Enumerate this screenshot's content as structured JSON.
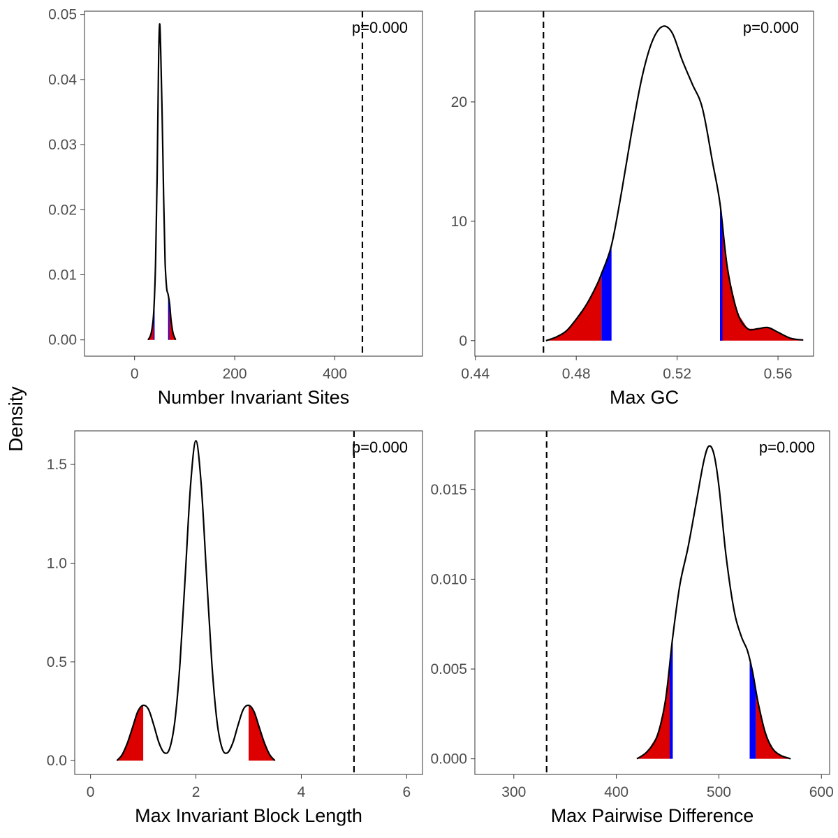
{
  "shared_ylabel": "Density",
  "chart_data": [
    {
      "type": "area",
      "xlabel": "Number Invariant Sites",
      "ylabel": "Density",
      "annotation": "p=0.000",
      "xlim": [
        -100,
        575
      ],
      "ylim": [
        -0.0025,
        0.0505
      ],
      "xticks": [
        0,
        200,
        400
      ],
      "xtick_labels": [
        "0",
        "200",
        "400"
      ],
      "yticks": [
        0,
        0.01,
        0.02,
        0.03,
        0.04,
        0.05
      ],
      "ytick_labels": [
        "0.00",
        "0.01",
        "0.02",
        "0.03",
        "0.04",
        "0.05"
      ],
      "observed_value": 455,
      "curve": [
        [
          27,
          0
        ],
        [
          33,
          0.001
        ],
        [
          38,
          0.004
        ],
        [
          42,
          0.012
        ],
        [
          45,
          0.025
        ],
        [
          48,
          0.043
        ],
        [
          50,
          0.0485
        ],
        [
          52,
          0.045
        ],
        [
          55,
          0.035
        ],
        [
          58,
          0.022
        ],
        [
          61,
          0.012
        ],
        [
          64,
          0.008
        ],
        [
          67,
          0.007
        ],
        [
          70,
          0.0055
        ],
        [
          73,
          0.003
        ],
        [
          77,
          0.001
        ],
        [
          82,
          0
        ]
      ],
      "red_tails": [
        [
          27,
          38
        ],
        [
          68,
          82
        ]
      ],
      "blue_bands": [
        [
          38,
          40
        ],
        [
          67,
          69
        ]
      ],
      "grid": false,
      "legend": "none"
    },
    {
      "type": "area",
      "xlabel": "Max GC",
      "ylabel": "Density",
      "annotation": "p=0.000",
      "xlim": [
        0.4398,
        0.5741
      ],
      "ylim": [
        -1.3,
        27.6
      ],
      "xticks": [
        0.44,
        0.48,
        0.52,
        0.56
      ],
      "xtick_labels": [
        "0.44",
        "0.48",
        "0.52",
        "0.56"
      ],
      "yticks": [
        0,
        10,
        20
      ],
      "ytick_labels": [
        "0",
        "10",
        "20"
      ],
      "observed_value": 0.467,
      "curve": [
        [
          0.468,
          0
        ],
        [
          0.472,
          0.3
        ],
        [
          0.476,
          0.8
        ],
        [
          0.48,
          1.8
        ],
        [
          0.484,
          3.0
        ],
        [
          0.488,
          4.6
        ],
        [
          0.49,
          5.6
        ],
        [
          0.494,
          8.0
        ],
        [
          0.498,
          12.5
        ],
        [
          0.502,
          17.5
        ],
        [
          0.506,
          22.0
        ],
        [
          0.51,
          25.0
        ],
        [
          0.514,
          26.3
        ],
        [
          0.518,
          25.8
        ],
        [
          0.522,
          23.5
        ],
        [
          0.526,
          21.5
        ],
        [
          0.53,
          19.5
        ],
        [
          0.534,
          15.0
        ],
        [
          0.537,
          11.5
        ],
        [
          0.54,
          6.0
        ],
        [
          0.544,
          2.3
        ],
        [
          0.548,
          1.0
        ],
        [
          0.552,
          1.0
        ],
        [
          0.556,
          1.1
        ],
        [
          0.56,
          0.7
        ],
        [
          0.565,
          0.2
        ],
        [
          0.57,
          0.05
        ]
      ],
      "red_tails": [
        [
          0.468,
          0.49
        ],
        [
          0.537,
          0.57
        ]
      ],
      "blue_bands": [
        [
          0.49,
          0.494
        ],
        [
          0.537,
          0.538
        ]
      ],
      "grid": false,
      "legend": "none"
    },
    {
      "type": "area",
      "xlabel": "Max Invariant Block Length",
      "ylabel": "Density",
      "annotation": "p=0.000",
      "xlim": [
        -0.3,
        6.3
      ],
      "ylim": [
        -0.07,
        1.67
      ],
      "xticks": [
        0,
        2,
        4,
        6
      ],
      "xtick_labels": [
        "0",
        "2",
        "4",
        "6"
      ],
      "yticks": [
        0,
        0.5,
        1.0,
        1.5
      ],
      "ytick_labels": [
        "0.0",
        "0.5",
        "1.0",
        "1.5"
      ],
      "observed_value": 5,
      "curve": [
        [
          0.5,
          0.0
        ],
        [
          0.6,
          0.03
        ],
        [
          0.7,
          0.09
        ],
        [
          0.8,
          0.17
        ],
        [
          0.9,
          0.25
        ],
        [
          1.0,
          0.28
        ],
        [
          1.1,
          0.26
        ],
        [
          1.2,
          0.18
        ],
        [
          1.3,
          0.09
        ],
        [
          1.4,
          0.04
        ],
        [
          1.5,
          0.06
        ],
        [
          1.6,
          0.2
        ],
        [
          1.7,
          0.5
        ],
        [
          1.8,
          0.95
        ],
        [
          1.9,
          1.4
        ],
        [
          2.0,
          1.62
        ],
        [
          2.1,
          1.4
        ],
        [
          2.2,
          0.95
        ],
        [
          2.3,
          0.5
        ],
        [
          2.4,
          0.2
        ],
        [
          2.5,
          0.06
        ],
        [
          2.6,
          0.04
        ],
        [
          2.7,
          0.09
        ],
        [
          2.8,
          0.18
        ],
        [
          2.9,
          0.26
        ],
        [
          3.0,
          0.28
        ],
        [
          3.1,
          0.25
        ],
        [
          3.2,
          0.17
        ],
        [
          3.3,
          0.09
        ],
        [
          3.4,
          0.03
        ],
        [
          3.5,
          0.0
        ]
      ],
      "red_tails": [
        [
          0.5,
          1.0
        ],
        [
          3.0,
          3.5
        ]
      ],
      "blue_bands": [],
      "grid": false,
      "legend": "none"
    },
    {
      "type": "area",
      "xlabel": "Max Pairwise Difference",
      "ylabel": "Density",
      "annotation": "p=0.000",
      "xlim": [
        262,
        608
      ],
      "ylim": [
        -0.00087,
        0.01826
      ],
      "xticks": [
        300,
        400,
        500,
        600
      ],
      "xtick_labels": [
        "300",
        "400",
        "500",
        "600"
      ],
      "yticks": [
        0,
        0.005,
        0.01,
        0.015
      ],
      "ytick_labels": [
        "0.000",
        "0.005",
        "0.010",
        "0.015"
      ],
      "observed_value": 332,
      "curve": [
        [
          420,
          0.0
        ],
        [
          430,
          0.0004
        ],
        [
          440,
          0.0013
        ],
        [
          448,
          0.0033
        ],
        [
          455,
          0.0068
        ],
        [
          462,
          0.0097
        ],
        [
          470,
          0.0118
        ],
        [
          478,
          0.0143
        ],
        [
          485,
          0.0165
        ],
        [
          490,
          0.0174
        ],
        [
          495,
          0.017
        ],
        [
          500,
          0.0152
        ],
        [
          507,
          0.0113
        ],
        [
          515,
          0.0082
        ],
        [
          522,
          0.0068
        ],
        [
          528,
          0.006
        ],
        [
          533,
          0.0048
        ],
        [
          538,
          0.0032
        ],
        [
          545,
          0.0015
        ],
        [
          552,
          0.0006
        ],
        [
          560,
          0.0002
        ],
        [
          570,
          0.0
        ]
      ],
      "red_tails": [
        [
          420,
          452
        ],
        [
          536,
          570
        ]
      ],
      "blue_bands": [
        [
          452,
          455
        ],
        [
          530,
          536
        ]
      ],
      "grid": false,
      "legend": "none"
    }
  ]
}
